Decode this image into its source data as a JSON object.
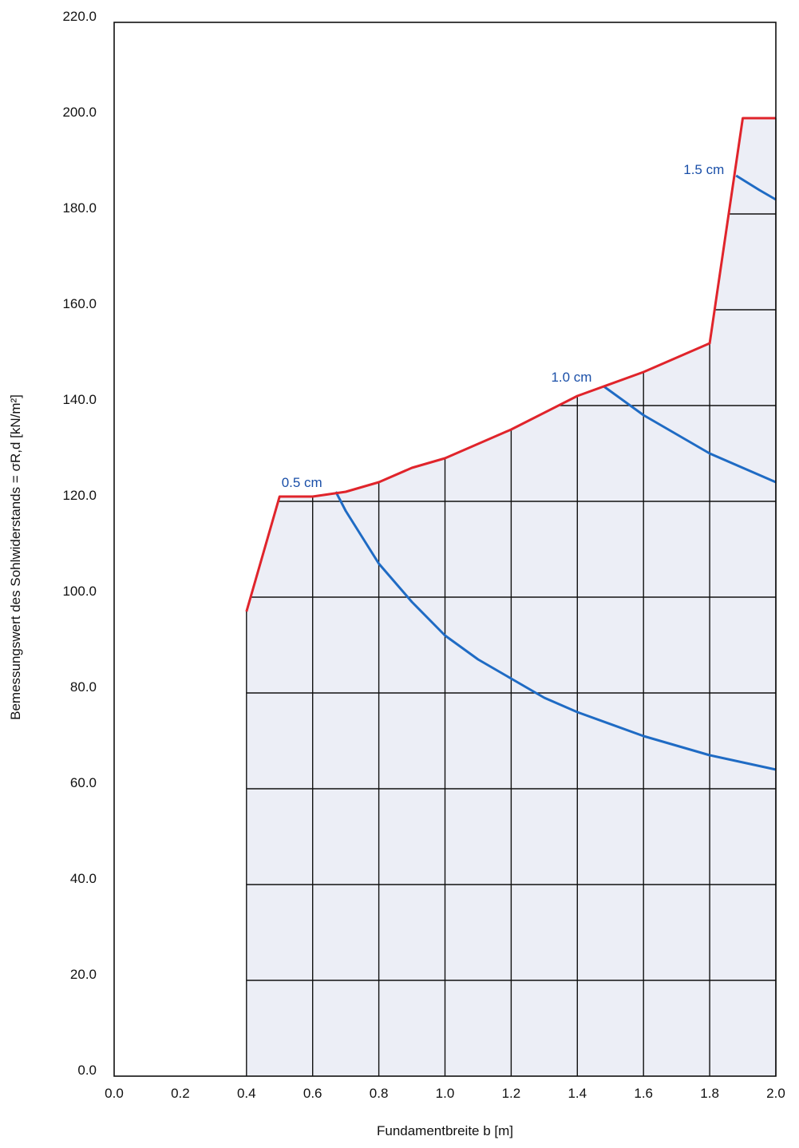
{
  "chart_data": {
    "type": "line",
    "xlabel": "Fundamentbreite b [m]",
    "ylabel": "Bemessungswert des Sohlwiderstands = σR,d [kN/m²]",
    "xlim": [
      0.0,
      2.0
    ],
    "ylim": [
      0.0,
      220.0
    ],
    "x_ticks": [
      "0.0",
      "0.2",
      "0.4",
      "0.6",
      "0.8",
      "1.0",
      "1.2",
      "1.4",
      "1.6",
      "1.8",
      "2.0"
    ],
    "y_ticks": [
      "0.0",
      "20.0",
      "40.0",
      "60.0",
      "80.0",
      "100.0",
      "120.0",
      "140.0",
      "160.0",
      "180.0",
      "200.0",
      "220.0"
    ],
    "grid": "inside shaded region",
    "colors": {
      "boundary": "#e0242b",
      "settlement": "#1f6bc4",
      "region": "#eceef6",
      "grid": "#111111"
    },
    "boundary": {
      "x": [
        0.0,
        0.4,
        0.4,
        0.5,
        0.6,
        0.7,
        0.8,
        0.9,
        1.0,
        1.2,
        1.4,
        1.6,
        1.8,
        1.9,
        2.0
      ],
      "y": [
        0.0,
        0.0,
        97.0,
        121.0,
        121.0,
        122.0,
        124.0,
        127.0,
        129.0,
        135.0,
        142.0,
        147.0,
        153.0,
        200.0,
        200.0
      ]
    },
    "settlement_curves": [
      {
        "label": "0.5 cm",
        "x": [
          0.67,
          0.7,
          0.8,
          0.9,
          1.0,
          1.1,
          1.2,
          1.3,
          1.4,
          1.6,
          1.8,
          2.0
        ],
        "y": [
          122.0,
          118.0,
          107.0,
          99.0,
          92.0,
          87.0,
          83.0,
          79.0,
          76.0,
          71.0,
          67.0,
          64.0
        ]
      },
      {
        "label": "1.0 cm",
        "x": [
          1.48,
          1.6,
          1.7,
          1.8,
          1.9,
          2.0
        ],
        "y": [
          144.0,
          138.0,
          134.0,
          130.0,
          127.0,
          124.0
        ]
      },
      {
        "label": "1.5 cm",
        "x": [
          1.88,
          1.95,
          2.0
        ],
        "y": [
          188.0,
          185.0,
          183.0
        ]
      }
    ]
  }
}
